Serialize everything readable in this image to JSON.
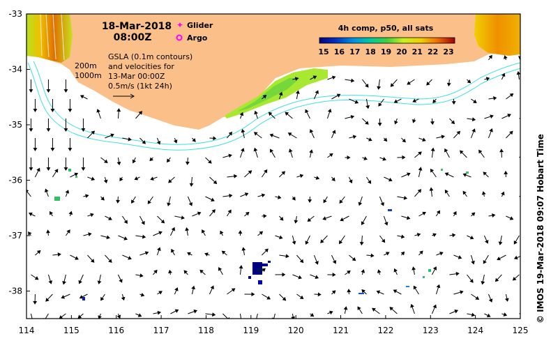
{
  "map": {
    "date_line": "18-Mar-2018",
    "time_line": "08:00Z",
    "legend_glider": "Glider",
    "legend_argo": "Argo",
    "gsla_note": [
      "GSLA (0.1m contours)",
      "and velocities for",
      "13-Mar 00:00Z",
      "0.5m/s (1kt 24h)"
    ],
    "isobath_200": "200m",
    "isobath_1000": "1000m",
    "colorbar_title": "4h comp, p50, all sats",
    "colorbar_ticks": [
      "15",
      "16",
      "17",
      "18",
      "19",
      "20",
      "21",
      "22",
      "23"
    ],
    "credit": "© IMOS 19-Mar-2018 09:07 Hobart Time",
    "lon_ticks": [
      "114",
      "115",
      "116",
      "117",
      "118",
      "119",
      "120",
      "121",
      "122",
      "123",
      "124",
      "125"
    ],
    "lat_ticks": [
      "-33",
      "-34",
      "-35",
      "-36",
      "-37",
      "-38"
    ],
    "colors": {
      "land": "#fbc08a",
      "isobath": "#40e0e0",
      "glider": "#ff00ff",
      "argo": "#ff00ff"
    }
  }
}
